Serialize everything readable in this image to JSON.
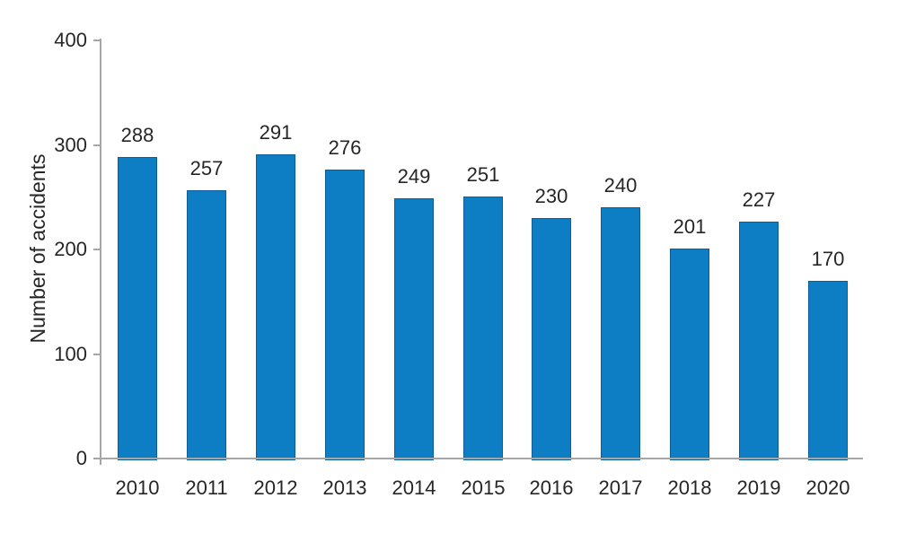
{
  "chart_data": {
    "type": "bar",
    "categories": [
      "2010",
      "2011",
      "2012",
      "2013",
      "2014",
      "2015",
      "2016",
      "2017",
      "2018",
      "2019",
      "2020"
    ],
    "values": [
      288,
      257,
      291,
      276,
      249,
      251,
      230,
      240,
      201,
      227,
      170
    ],
    "title": "",
    "xlabel": "",
    "ylabel": "Number of accidents",
    "ylim": [
      0,
      400
    ],
    "yticks": [
      0,
      100,
      200,
      300,
      400
    ],
    "grid": false,
    "legend": "none",
    "data_labels": true,
    "colors": {
      "bar_fill": "#0e7ec4",
      "bar_border": "#0b5d9b",
      "axis": "#a6a6a6",
      "text": "#262626",
      "background": "#ffffff"
    }
  }
}
